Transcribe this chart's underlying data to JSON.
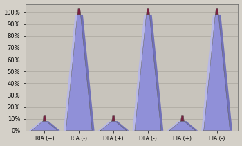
{
  "categories": [
    "RIA (+)",
    "RIA (-)",
    "DFA (+)",
    "DFA (-)",
    "EIA (+)",
    "EIA (-)"
  ],
  "values": [
    8,
    98,
    8,
    98,
    8,
    98
  ],
  "bg_color": "#d4d0c8",
  "plot_bg_color": "#c8c4bc",
  "bar_blue_front": "#9090d8",
  "bar_blue_right": "#7070b8",
  "bar_blue_left": "#b8b8e8",
  "bar_red_front": "#7a2040",
  "bar_red_right": "#5a1030",
  "bar_red_top": "#8a3050",
  "grid_color": "#b0aca4",
  "ylim": [
    0,
    100
  ],
  "yticks": [
    0,
    10,
    20,
    30,
    40,
    50,
    60,
    70,
    80,
    90,
    100
  ],
  "ytick_labels": [
    "0%",
    "10%",
    "20%",
    "30%",
    "40%",
    "50%",
    "60%",
    "70%",
    "80%",
    "90%",
    "100%"
  ],
  "xlabel_fontsize": 5.5,
  "ylabel_fontsize": 6.0,
  "n_bars": 6,
  "taper": 0.12,
  "cap_taper": 0.55,
  "depth_ratio": 0.18
}
